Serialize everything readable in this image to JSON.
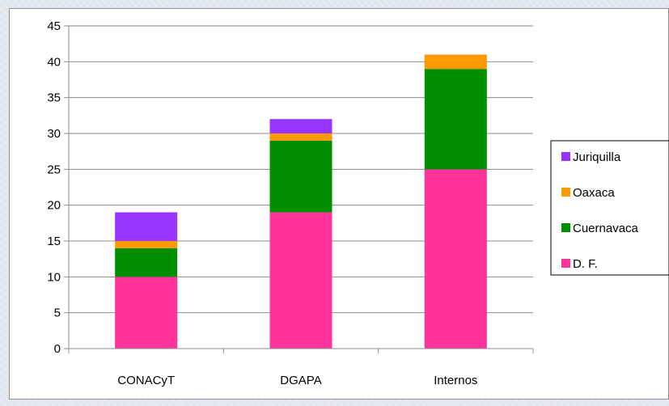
{
  "chart_data": {
    "type": "bar",
    "stacked": true,
    "categories": [
      "CONACyT",
      "DGAPA",
      "Internos"
    ],
    "series": [
      {
        "name": "D. F.",
        "color": "#ff3399",
        "values": [
          10,
          19,
          25
        ]
      },
      {
        "name": "Cuernavaca",
        "color": "#008f00",
        "values": [
          4,
          10,
          14
        ]
      },
      {
        "name": "Oaxaca",
        "color": "#ff9900",
        "values": [
          1,
          1,
          2
        ]
      },
      {
        "name": "Juriquilla",
        "color": "#9933ff",
        "values": [
          4,
          2,
          0
        ]
      }
    ],
    "legend_order": [
      "Juriquilla",
      "Oaxaca",
      "Cuernavaca",
      "D. F."
    ],
    "ylim": [
      0,
      45
    ],
    "yticks": [
      0,
      5,
      10,
      15,
      20,
      25,
      30,
      35,
      40,
      45
    ],
    "grid": true,
    "legend_position": "right",
    "title": "",
    "xlabel": "",
    "ylabel": ""
  }
}
